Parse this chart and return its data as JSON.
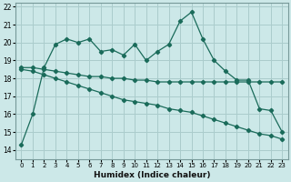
{
  "xlabel": "Humidex (Indice chaleur)",
  "bg_color": "#cce8e8",
  "grid_color": "#aacccc",
  "line_color": "#1a6b5a",
  "xlim": [
    -0.5,
    23.5
  ],
  "ylim": [
    13.5,
    22.2
  ],
  "yticks": [
    14,
    15,
    16,
    17,
    18,
    19,
    20,
    21,
    22
  ],
  "xticks": [
    0,
    1,
    2,
    3,
    4,
    5,
    6,
    7,
    8,
    9,
    10,
    11,
    12,
    13,
    14,
    15,
    16,
    17,
    18,
    19,
    20,
    21,
    22,
    23
  ],
  "series1_x": [
    0,
    1,
    2,
    3,
    4,
    5,
    6,
    7,
    8,
    9,
    10,
    11,
    12,
    13,
    14,
    15,
    16,
    17,
    18,
    19,
    20,
    21,
    22,
    23
  ],
  "series1_y": [
    14.3,
    16.0,
    18.6,
    19.9,
    20.2,
    20.0,
    20.2,
    19.5,
    19.6,
    19.3,
    19.9,
    19.0,
    19.5,
    19.9,
    21.2,
    21.7,
    20.2,
    19.0,
    18.4,
    17.9,
    17.9,
    16.3,
    16.2,
    15.0
  ],
  "series2_x": [
    0,
    1,
    2,
    3,
    4,
    5,
    6,
    7,
    8,
    9,
    10,
    11,
    12,
    13,
    14,
    15,
    16,
    17,
    18,
    19,
    20,
    21,
    22,
    23
  ],
  "series2_y": [
    18.6,
    18.6,
    18.5,
    18.4,
    18.3,
    18.2,
    18.1,
    18.1,
    18.0,
    18.0,
    17.9,
    17.9,
    17.8,
    17.8,
    17.8,
    17.8,
    17.8,
    17.8,
    17.8,
    17.8,
    17.8,
    17.8,
    17.8,
    17.8
  ],
  "series3_x": [
    0,
    1,
    2,
    3,
    4,
    5,
    6,
    7,
    8,
    9,
    10,
    11,
    12,
    13,
    14,
    15,
    16,
    17,
    18,
    19,
    20,
    21,
    22,
    23
  ],
  "series3_y": [
    18.5,
    18.4,
    18.2,
    18.0,
    17.8,
    17.6,
    17.4,
    17.2,
    17.0,
    16.8,
    16.7,
    16.6,
    16.5,
    16.3,
    16.2,
    16.1,
    15.9,
    15.7,
    15.5,
    15.3,
    15.1,
    14.9,
    14.8,
    14.6
  ]
}
